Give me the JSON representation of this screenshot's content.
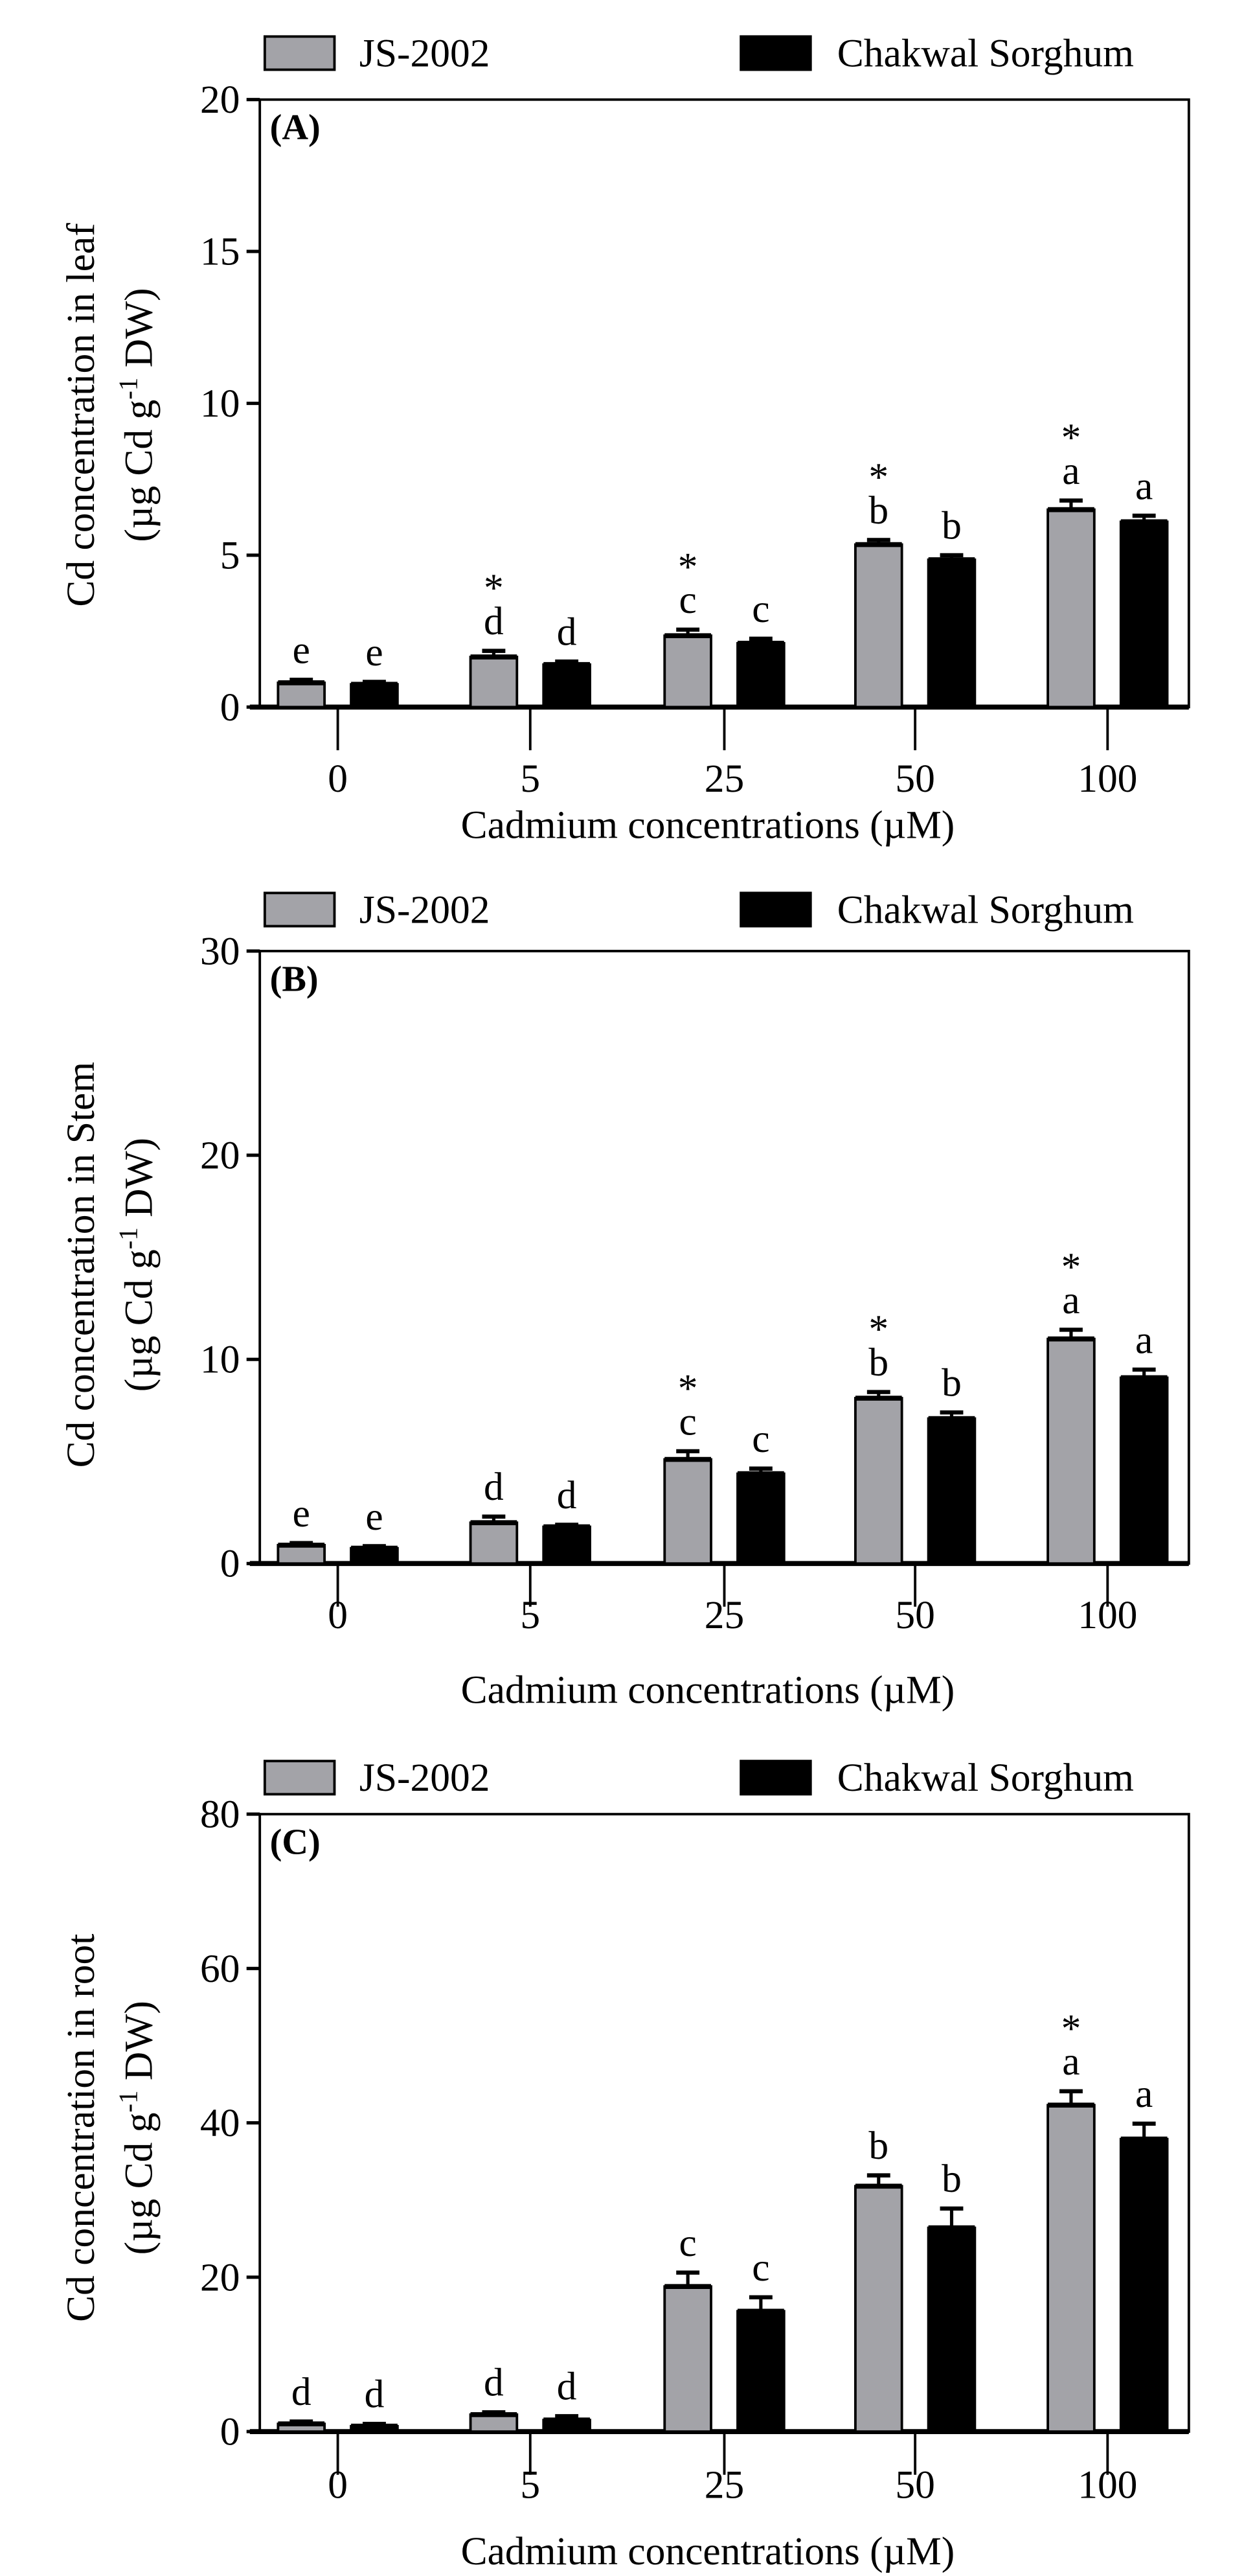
{
  "legend": {
    "series": [
      "JS-2002",
      "Chakwal Sorghum"
    ]
  },
  "colors": {
    "JS-2002": "#a3a3a8",
    "Chakwal Sorghum": "#000000"
  },
  "chart_data": [
    {
      "type": "bar",
      "panel_label": "(A)",
      "categories": [
        "0",
        "5",
        "25",
        "50",
        "100"
      ],
      "xlabel": "Cadmium concentrations (µM)",
      "ylabel_line1": "Cd concentration in leaf",
      "ylabel_line2": "(µg Cd g-1 DW)",
      "ylim": [
        0,
        20
      ],
      "yticks": [
        "0",
        "5",
        "10",
        "15",
        "20"
      ],
      "series": [
        {
          "name": "JS-2002",
          "values": [
            0.8,
            1.65,
            2.35,
            5.35,
            6.5
          ],
          "errors": [
            0.1,
            0.2,
            0.2,
            0.15,
            0.3
          ],
          "letters": [
            "e",
            "d",
            "c",
            "b",
            "a"
          ],
          "stars": [
            "",
            "*",
            "*",
            "*",
            "*"
          ]
        },
        {
          "name": "Chakwal Sorghum",
          "values": [
            0.75,
            1.4,
            2.1,
            4.85,
            6.1
          ],
          "errors": [
            0.08,
            0.1,
            0.15,
            0.15,
            0.2
          ],
          "letters": [
            "e",
            "d",
            "c",
            "b",
            "a"
          ],
          "stars": [
            "",
            "",
            "",
            "",
            ""
          ]
        }
      ]
    },
    {
      "type": "bar",
      "panel_label": "(B)",
      "categories": [
        "0",
        "5",
        "25",
        "50",
        "100"
      ],
      "xlabel": "Cadmium concentrations (µM)",
      "ylabel_line1": "Cd concentration in Stem",
      "ylabel_line2": "(µg Cd g-1 DW)",
      "ylim": [
        0,
        30
      ],
      "yticks": [
        "0",
        "10",
        "20",
        "30"
      ],
      "series": [
        {
          "name": "JS-2002",
          "values": [
            0.9,
            2.0,
            5.1,
            8.1,
            11.0
          ],
          "errors": [
            0.1,
            0.3,
            0.4,
            0.3,
            0.45
          ],
          "letters": [
            "e",
            "d",
            "c",
            "b",
            "a"
          ],
          "stars": [
            "",
            "",
            "*",
            "*",
            "*"
          ]
        },
        {
          "name": "Chakwal Sorghum",
          "values": [
            0.75,
            1.8,
            4.4,
            7.1,
            9.1
          ],
          "errors": [
            0.1,
            0.1,
            0.25,
            0.3,
            0.4
          ],
          "letters": [
            "e",
            "d",
            "c",
            "b",
            "a"
          ],
          "stars": [
            "",
            "",
            "",
            "",
            ""
          ]
        }
      ]
    },
    {
      "type": "bar",
      "panel_label": "(C)",
      "categories": [
        "0",
        "5",
        "25",
        "50",
        "100"
      ],
      "xlabel": "Cadmium concentrations (µM)",
      "ylabel_line1": "Cd concentration in root",
      "ylabel_line2": "(µg Cd g-1 DW)",
      "ylim": [
        0,
        80
      ],
      "yticks": [
        "0",
        "20",
        "40",
        "60",
        "80"
      ],
      "series": [
        {
          "name": "JS-2002",
          "values": [
            1.0,
            2.2,
            18.8,
            31.8,
            42.3
          ],
          "errors": [
            0.3,
            0.3,
            1.8,
            1.4,
            1.8
          ],
          "letters": [
            "d",
            "d",
            "c",
            "b",
            "a"
          ],
          "stars": [
            "",
            "",
            "",
            "",
            "*"
          ]
        },
        {
          "name": "Chakwal Sorghum",
          "values": [
            0.7,
            1.5,
            15.6,
            26.4,
            37.9
          ],
          "errors": [
            0.3,
            0.5,
            1.8,
            2.5,
            2.0
          ],
          "letters": [
            "d",
            "d",
            "c",
            "b",
            "a"
          ],
          "stars": [
            "",
            "",
            "",
            "",
            ""
          ]
        }
      ]
    }
  ]
}
